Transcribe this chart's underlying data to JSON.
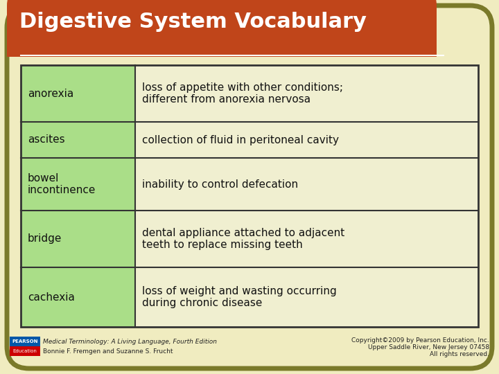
{
  "title": "Digestive System Vocabulary",
  "title_bg_color": "#C0451A",
  "title_text_color": "#FFFFFF",
  "background_color": "#F0ECC0",
  "border_color": "#7A7A2A",
  "table_border_color": "#333333",
  "left_col_bg": "#AADE88",
  "right_col_bg": "#F0EFD0",
  "rows": [
    {
      "term": "anorexia",
      "definition": "loss of appetite with other conditions;\ndifferent from anorexia nervosa"
    },
    {
      "term": "ascites",
      "definition": "collection of fluid in peritoneal cavity"
    },
    {
      "term": "bowel\nincontinence",
      "definition": "inability to control defecation"
    },
    {
      "term": "bridge",
      "definition": "dental appliance attached to adjacent\nteeth to replace missing teeth"
    },
    {
      "term": "cachexia",
      "definition": "loss of weight and wasting occurring\nduring chronic disease"
    }
  ],
  "footer_left_line1": "Medical Terminology: A Living Language, Fourth Edition",
  "footer_left_line2": "Bonnie F. Fremgen and Suzanne S. Frucht",
  "footer_right_line1": "Copyright©2009 by Pearson Education, Inc.",
  "footer_right_line2": "Upper Saddle River, New Jersey 07458",
  "footer_right_line3": "All rights reserved.",
  "pearson_box_color1": "#0057A8",
  "pearson_box_color2": "#CC0000"
}
